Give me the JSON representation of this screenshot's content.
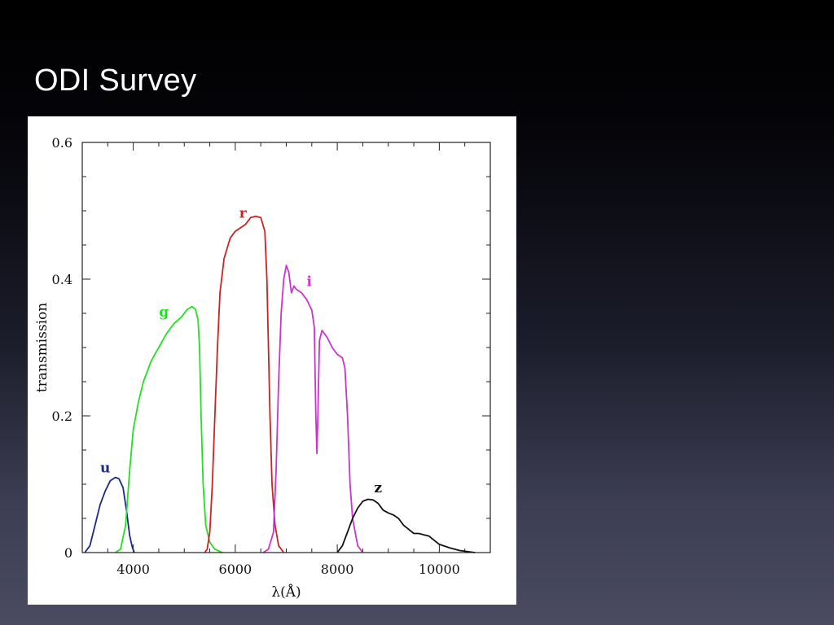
{
  "slide": {
    "title": "ODI Survey"
  },
  "chart_data": {
    "type": "line",
    "title": "",
    "xlabel": "λ(Å)",
    "ylabel": "transmission",
    "xlim": [
      3000,
      11000
    ],
    "ylim": [
      0,
      0.6
    ],
    "x_ticks": [
      4000,
      6000,
      8000,
      10000
    ],
    "x_tick_labels": [
      "4000",
      "6000",
      "8000",
      "10000"
    ],
    "y_ticks": [
      0,
      0.2,
      0.4,
      0.6
    ],
    "y_tick_labels": [
      "0",
      "0.2",
      "0.4",
      "0.6"
    ],
    "grid": false,
    "legend": "none",
    "series": [
      {
        "name": "u",
        "color": "#1a2a8a",
        "label_at": [
          3450,
          0.117
        ],
        "points": [
          [
            3050,
            0
          ],
          [
            3150,
            0.01
          ],
          [
            3250,
            0.04
          ],
          [
            3350,
            0.07
          ],
          [
            3450,
            0.09
          ],
          [
            3550,
            0.105
          ],
          [
            3650,
            0.11
          ],
          [
            3720,
            0.108
          ],
          [
            3800,
            0.095
          ],
          [
            3870,
            0.06
          ],
          [
            3930,
            0.025
          ],
          [
            3980,
            0.008
          ],
          [
            4020,
            0
          ]
        ]
      },
      {
        "name": "g",
        "color": "#22e022",
        "label_at": [
          4600,
          0.345
        ],
        "points": [
          [
            3650,
            0
          ],
          [
            3750,
            0.005
          ],
          [
            3850,
            0.04
          ],
          [
            3930,
            0.12
          ],
          [
            4000,
            0.18
          ],
          [
            4100,
            0.22
          ],
          [
            4200,
            0.25
          ],
          [
            4350,
            0.28
          ],
          [
            4500,
            0.3
          ],
          [
            4650,
            0.32
          ],
          [
            4800,
            0.335
          ],
          [
            4950,
            0.345
          ],
          [
            5050,
            0.355
          ],
          [
            5150,
            0.36
          ],
          [
            5220,
            0.356
          ],
          [
            5270,
            0.34
          ],
          [
            5300,
            0.3
          ],
          [
            5330,
            0.2
          ],
          [
            5370,
            0.1
          ],
          [
            5420,
            0.04
          ],
          [
            5500,
            0.015
          ],
          [
            5600,
            0.005
          ],
          [
            5750,
            0
          ]
        ]
      },
      {
        "name": "r",
        "color": "#cc2222",
        "label_at": [
          6150,
          0.49
        ],
        "points": [
          [
            5400,
            0
          ],
          [
            5450,
            0.005
          ],
          [
            5500,
            0.03
          ],
          [
            5550,
            0.1
          ],
          [
            5600,
            0.2
          ],
          [
            5650,
            0.3
          ],
          [
            5700,
            0.38
          ],
          [
            5780,
            0.43
          ],
          [
            5900,
            0.46
          ],
          [
            6000,
            0.47
          ],
          [
            6100,
            0.475
          ],
          [
            6200,
            0.48
          ],
          [
            6300,
            0.49
          ],
          [
            6400,
            0.492
          ],
          [
            6500,
            0.49
          ],
          [
            6580,
            0.47
          ],
          [
            6620,
            0.4
          ],
          [
            6650,
            0.3
          ],
          [
            6680,
            0.2
          ],
          [
            6720,
            0.1
          ],
          [
            6780,
            0.04
          ],
          [
            6850,
            0.01
          ],
          [
            6950,
            0
          ]
        ]
      },
      {
        "name": "i",
        "color": "#cc33cc",
        "label_at": [
          7450,
          0.39
        ],
        "points": [
          [
            6550,
            0
          ],
          [
            6650,
            0.005
          ],
          [
            6750,
            0.03
          ],
          [
            6800,
            0.12
          ],
          [
            6850,
            0.25
          ],
          [
            6900,
            0.35
          ],
          [
            6950,
            0.4
          ],
          [
            7000,
            0.42
          ],
          [
            7050,
            0.41
          ],
          [
            7100,
            0.38
          ],
          [
            7150,
            0.39
          ],
          [
            7200,
            0.385
          ],
          [
            7300,
            0.38
          ],
          [
            7400,
            0.37
          ],
          [
            7500,
            0.355
          ],
          [
            7550,
            0.33
          ],
          [
            7580,
            0.2
          ],
          [
            7600,
            0.145
          ],
          [
            7620,
            0.2
          ],
          [
            7650,
            0.31
          ],
          [
            7700,
            0.325
          ],
          [
            7800,
            0.315
          ],
          [
            7900,
            0.3
          ],
          [
            8000,
            0.29
          ],
          [
            8100,
            0.285
          ],
          [
            8150,
            0.27
          ],
          [
            8200,
            0.2
          ],
          [
            8250,
            0.1
          ],
          [
            8300,
            0.05
          ],
          [
            8400,
            0.01
          ],
          [
            8500,
            0
          ]
        ]
      },
      {
        "name": "z",
        "color": "#111111",
        "label_at": [
          8800,
          0.088
        ],
        "points": [
          [
            8000,
            0
          ],
          [
            8100,
            0.01
          ],
          [
            8200,
            0.03
          ],
          [
            8300,
            0.05
          ],
          [
            8400,
            0.065
          ],
          [
            8500,
            0.075
          ],
          [
            8600,
            0.078
          ],
          [
            8700,
            0.077
          ],
          [
            8800,
            0.072
          ],
          [
            8900,
            0.062
          ],
          [
            9000,
            0.058
          ],
          [
            9100,
            0.055
          ],
          [
            9200,
            0.05
          ],
          [
            9300,
            0.04
          ],
          [
            9400,
            0.034
          ],
          [
            9500,
            0.028
          ],
          [
            9600,
            0.028
          ],
          [
            9700,
            0.026
          ],
          [
            9800,
            0.024
          ],
          [
            9900,
            0.018
          ],
          [
            10000,
            0.012
          ],
          [
            10200,
            0.007
          ],
          [
            10400,
            0.003
          ],
          [
            10700,
            0
          ]
        ]
      }
    ]
  }
}
